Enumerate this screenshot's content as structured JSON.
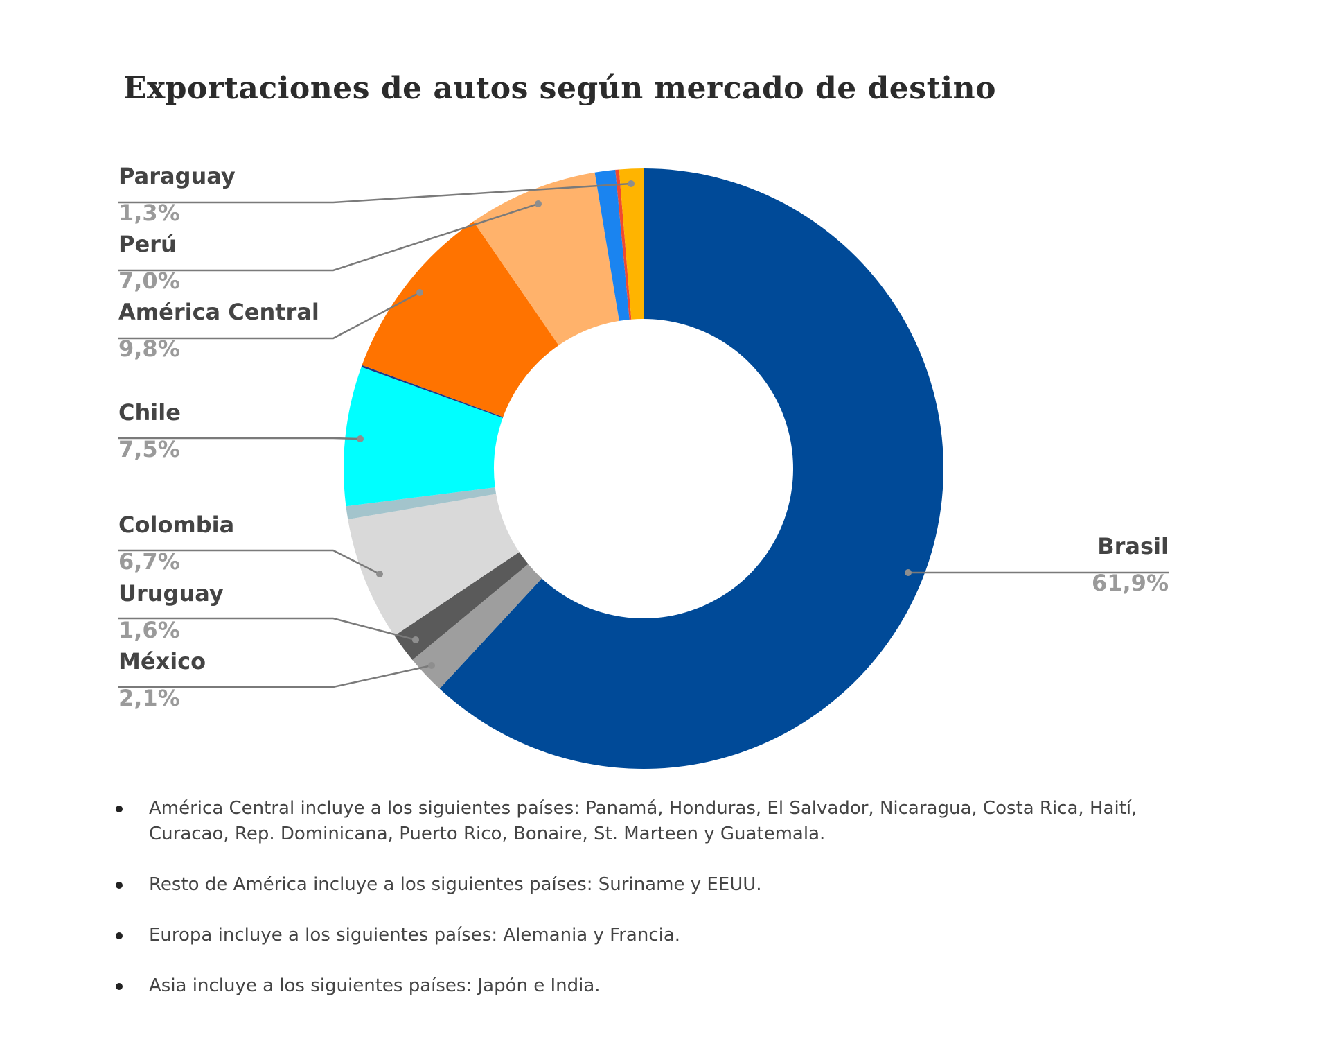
{
  "chart_data": {
    "type": "pie",
    "variant": "donut",
    "title": "Exportaciones de autos según mercado de destino",
    "start": "top",
    "direction": "clockwise",
    "slices": [
      {
        "name": "Brasil",
        "label": "61,9%",
        "value": 61.9,
        "color": "#004a98"
      },
      {
        "name": "México",
        "label": "2,1%",
        "value": 2.1,
        "color": "#9e9e9e"
      },
      {
        "name": "Uruguay",
        "label": "1,6%",
        "value": 1.6,
        "color": "#5a5a5a"
      },
      {
        "name": "Colombia",
        "label": "6,7%",
        "value": 6.7,
        "color": "#d9d9d9"
      },
      {
        "name": "",
        "label": "",
        "value": 0.7,
        "color": "#a3c4cc"
      },
      {
        "name": "Chile",
        "label": "7,5%",
        "value": 7.5,
        "color": "#00ffff"
      },
      {
        "name": "",
        "label": "",
        "value": 0.1,
        "color": "#1a3a8a"
      },
      {
        "name": "América Central",
        "label": "9,8%",
        "value": 9.8,
        "color": "#ff7300"
      },
      {
        "name": "Perú",
        "label": "7,0%",
        "value": 7.0,
        "color": "#ffb26b"
      },
      {
        "name": "",
        "label": "",
        "value": 1.1,
        "color": "#1a84f0"
      },
      {
        "name": "",
        "label": "",
        "value": 0.2,
        "color": "#f04a30"
      },
      {
        "name": "Paraguay",
        "label": "1,3%",
        "value": 1.3,
        "color": "#ffb400"
      }
    ],
    "legend": "none"
  },
  "notes": [
    "América Central incluye a los siguientes países: Panamá, Honduras, El Salvador, Nicaragua, Costa Rica, Haití, Curacao, Rep. Dominicana, Puerto Rico, Bonaire, St. Marteen y Guatemala.",
    "Resto de América incluye a los siguientes países: Suriname y EEUU.",
    "Europa incluye a los siguientes países: Alemania y Francia.",
    "Asia incluye a los siguientes países: Japón e India."
  ]
}
